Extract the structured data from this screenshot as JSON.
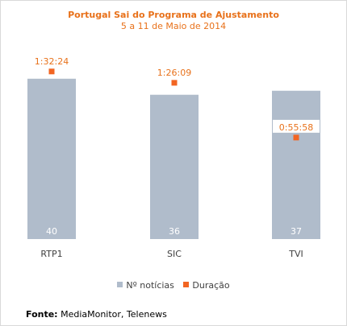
{
  "chart_data": {
    "type": "bar",
    "title": "Portugal Sai do Programa de Ajustamento",
    "subtitle": "5 a 11 de Maio de 2014",
    "categories": [
      "RTP1",
      "SIC",
      "TVI"
    ],
    "series": [
      {
        "name": "Nº notícias",
        "type": "bar",
        "values": [
          40,
          36,
          37
        ],
        "color": "#b0bccb"
      },
      {
        "name": "Duração",
        "type": "marker",
        "values": [
          "1:32:24",
          "1:26:09",
          "0:55:58"
        ],
        "seconds": [
          5544,
          5169,
          3358
        ],
        "color": "#f26522"
      }
    ],
    "ylim_bars": [
      0,
      50
    ],
    "ylim_duration_seconds": [
      0,
      6630
    ],
    "legend_position": "bottom",
    "grid": false
  },
  "legend": {
    "bars_label": "Nº notícias",
    "markers_label": "Duração"
  },
  "source": {
    "label": "Fonte:",
    "text": "MediaMonitor, Telenews"
  }
}
